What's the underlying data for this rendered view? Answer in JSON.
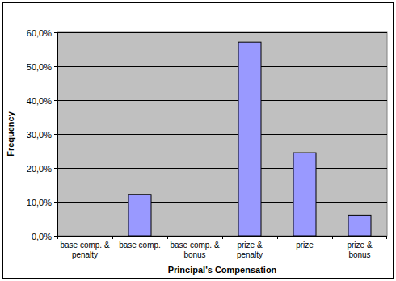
{
  "chart_data": {
    "type": "bar",
    "xlabel": "Principal's Compensation",
    "ylabel": "Frequency",
    "categories": [
      "base comp. & penalty",
      "base comp.",
      "base comp. & bonus",
      "prize & penalty",
      "prize",
      "prize & bonus"
    ],
    "values": [
      0,
      12.2,
      0,
      57.1,
      24.5,
      6.1
    ],
    "color": "#9999ff",
    "ylim": [
      0,
      60
    ],
    "yticks": [
      {
        "value": 0,
        "label": "0,0%"
      },
      {
        "value": 10,
        "label": "10,0%"
      },
      {
        "value": 20,
        "label": "20,0%"
      },
      {
        "value": 30,
        "label": "30,0%"
      },
      {
        "value": 40,
        "label": "40,0%"
      },
      {
        "value": 50,
        "label": "50,0%"
      },
      {
        "value": 60,
        "label": "60,0%"
      }
    ],
    "grid": true
  }
}
